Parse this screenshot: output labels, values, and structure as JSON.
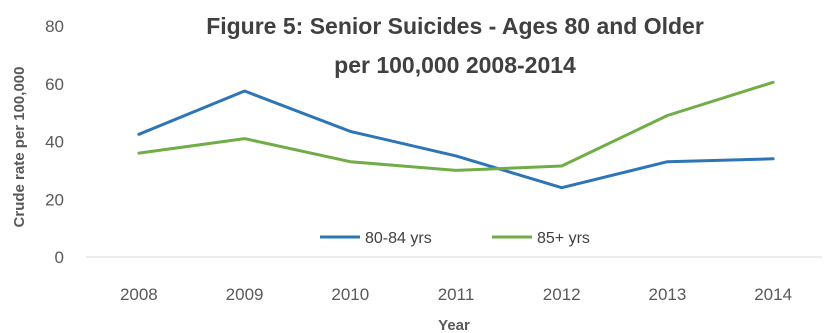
{
  "chart_data": {
    "type": "line",
    "title_line1": "Figure 5: Senior Suicides - Ages 80 and Older",
    "title_line2": "per 100,000 2008-2014",
    "xlabel": "Year",
    "ylabel": "Crude rate per 100,000",
    "categories": [
      "2008",
      "2009",
      "2010",
      "2011",
      "2012",
      "2013",
      "2014"
    ],
    "y_ticks": [
      0,
      20,
      40,
      60,
      80
    ],
    "ylim": [
      0,
      80
    ],
    "grid": false,
    "legend_position": "bottom-center",
    "series": [
      {
        "name": "80-84 yrs",
        "color": "#2e75b6",
        "values": [
          42.5,
          57.5,
          43.5,
          35,
          24,
          33,
          34
        ]
      },
      {
        "name": "85+ yrs",
        "color": "#70ad47",
        "values": [
          36,
          41,
          33,
          30,
          31.5,
          49,
          60.5
        ]
      }
    ]
  }
}
